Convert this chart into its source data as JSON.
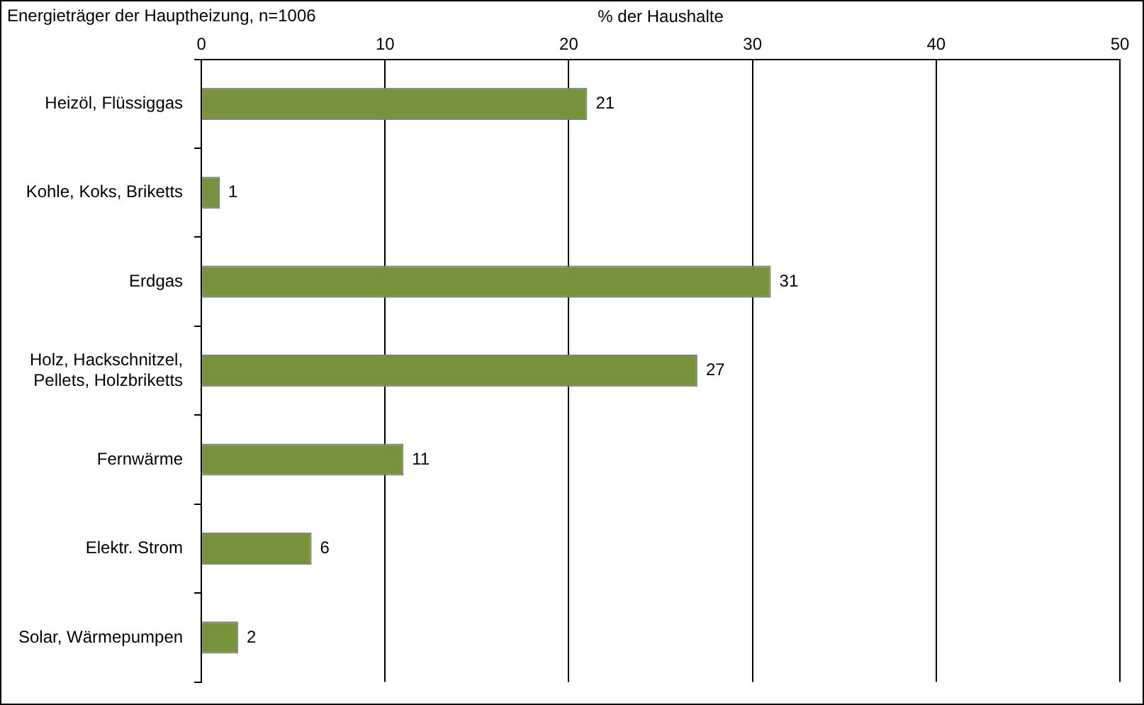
{
  "chart_data": {
    "type": "bar",
    "orientation": "horizontal",
    "title": "Energieträger der Hauptheizung, n=1006",
    "xlabel": "% der Haushalte",
    "categories": [
      "Heizöl, Flüssiggas",
      "Kohle, Koks, Briketts",
      "Erdgas",
      "Holz, Hackschnitzel, Pellets, Holzbriketts",
      "Fernwärme",
      "Elektr. Strom",
      "Solar, Wärmepumpen"
    ],
    "values": [
      21,
      1,
      31,
      27,
      11,
      6,
      2
    ],
    "color": "#77933c",
    "xlim": [
      0,
      50
    ],
    "xticks": [
      0,
      10,
      20,
      30,
      40,
      50
    ],
    "grid": "x",
    "data_labels": true
  }
}
